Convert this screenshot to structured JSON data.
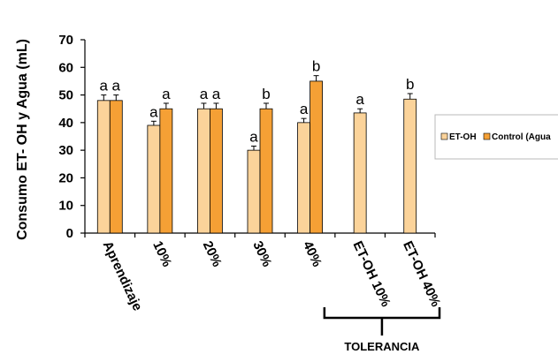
{
  "chart_data": {
    "type": "bar",
    "ylabel": "Consumo ET- OH y Agua (mL)",
    "ylim": [
      0,
      70
    ],
    "yticks": [
      0,
      10,
      20,
      30,
      40,
      50,
      60,
      70
    ],
    "grid": false,
    "legend_position": "right",
    "categories": [
      "Aprendizaje",
      "10%",
      "20%",
      "30%",
      "40%",
      "ET-OH 10%",
      "ET-OH 40%"
    ],
    "series": [
      {
        "name": "ET-OH",
        "color": "#FBD39A",
        "values": [
          48,
          39,
          45,
          30,
          40,
          43.5,
          48.5
        ],
        "errors": [
          2,
          1.5,
          2,
          1.5,
          1.5,
          1.5,
          2
        ],
        "labels": [
          "a",
          "a",
          "a",
          "a",
          "a",
          "a",
          "b"
        ]
      },
      {
        "name": "Control (Agua",
        "color": "#F5A035",
        "values": [
          48,
          45,
          45,
          45,
          55,
          null,
          null
        ],
        "errors": [
          2,
          2,
          2,
          2,
          2,
          null,
          null
        ],
        "labels": [
          "a",
          "a",
          "a",
          "b",
          "b",
          null,
          null
        ]
      }
    ],
    "annotation": "TOLERANCIA",
    "annotation_categories": [
      "ET-OH 10%",
      "ET-OH 40%"
    ]
  }
}
